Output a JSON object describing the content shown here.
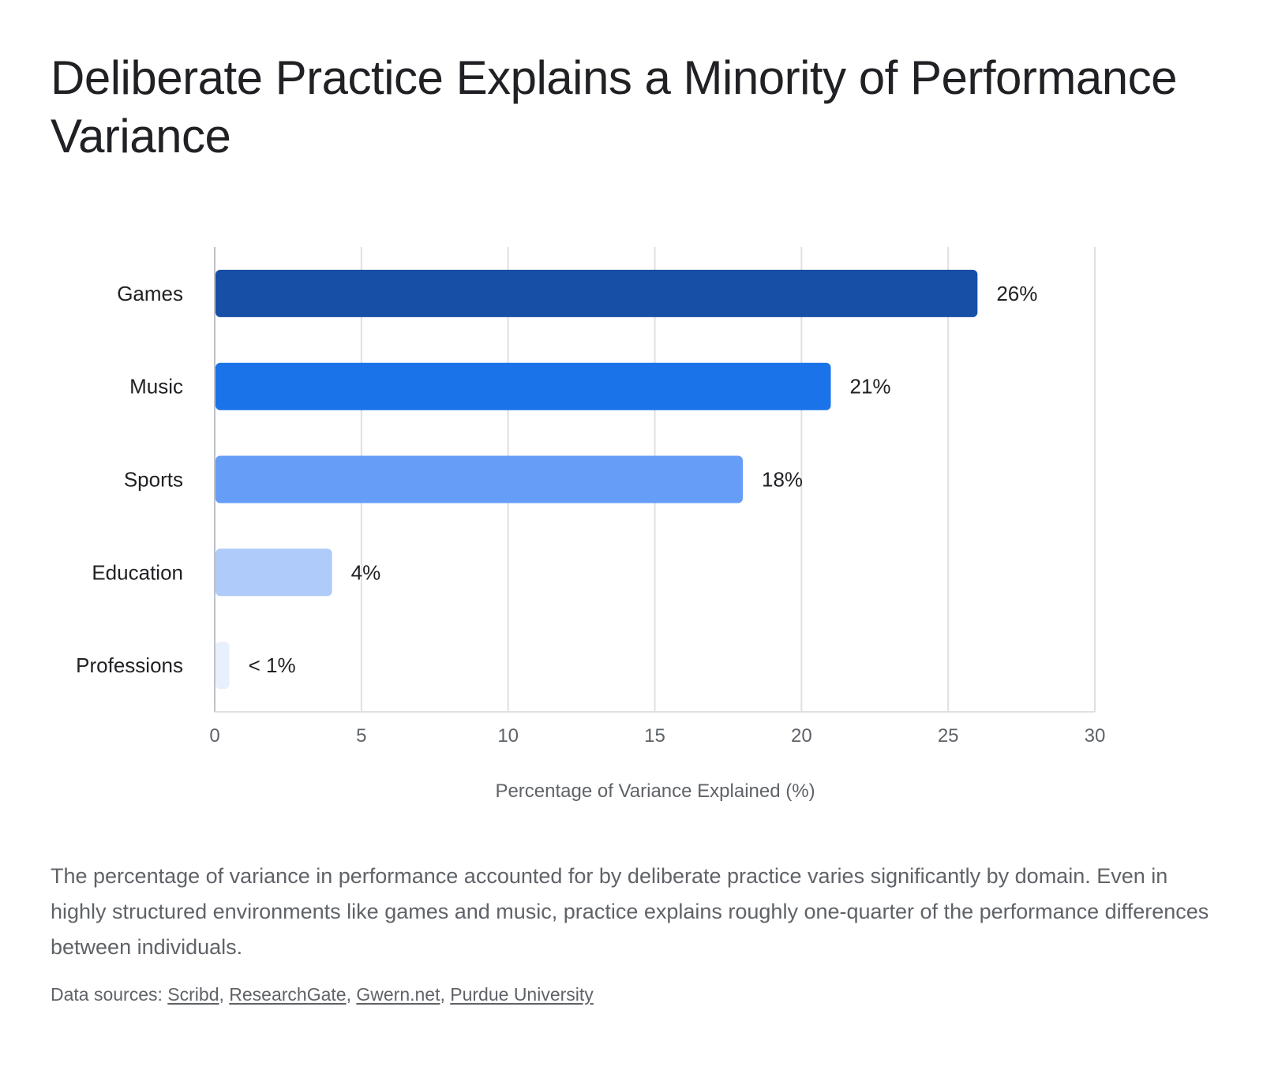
{
  "chart_data": {
    "type": "bar",
    "orientation": "horizontal",
    "title": "Deliberate Practice Explains a Minority of Performance Variance",
    "categories": [
      "Games",
      "Music",
      "Sports",
      "Education",
      "Professions"
    ],
    "values": [
      26,
      21,
      18,
      4,
      0.5
    ],
    "data_labels": [
      "26%",
      "21%",
      "18%",
      "4%",
      "< 1%"
    ],
    "colors": [
      "#174ea6",
      "#1a73e8",
      "#669df6",
      "#aecbfa",
      "#e8f0fe"
    ],
    "xlabel": "Percentage of Variance Explained (%)",
    "ylabel": "",
    "xlim": [
      0,
      30
    ],
    "xticks": [
      0,
      5,
      10,
      15,
      20,
      25,
      30
    ],
    "grid": true,
    "legend": "none"
  },
  "caption": "The percentage of variance in performance accounted for by deliberate practice varies significantly by domain. Even in highly structured environments like games and music, practice explains roughly one-quarter of the performance differences between individuals.",
  "sources": {
    "prefix": "Data sources: ",
    "links": [
      "Scribd",
      "ResearchGate",
      "Gwern.net",
      "Purdue University"
    ]
  }
}
